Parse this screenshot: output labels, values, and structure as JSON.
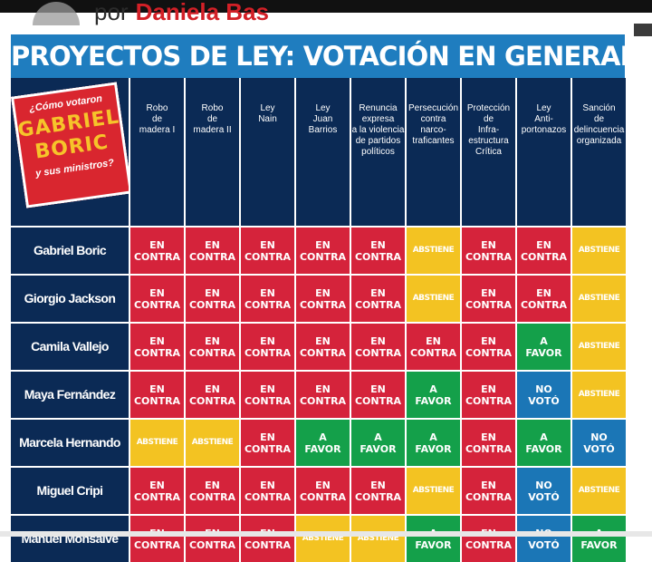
{
  "header": {
    "byline_prefix": "por",
    "byline_name": "Daniela Bas",
    "title": "PROYECTOS DE LEY: VOTACIÓN EN GENERAL"
  },
  "badge": {
    "question_top": "¿Cómo votaron",
    "name_line1": "GABRIEL",
    "name_line2": "BORIC",
    "question_bottom": "y sus ministros?"
  },
  "columns": [
    [
      "Robo",
      "de",
      "madera I"
    ],
    [
      "Robo",
      "de",
      "madera II"
    ],
    [
      "Ley",
      "Nain"
    ],
    [
      "Ley",
      "Juan",
      "Barrios"
    ],
    [
      "Renuncia",
      "expresa",
      "a la violencia",
      "de partidos",
      "políticos"
    ],
    [
      "Persecución",
      "contra",
      "narco-",
      "traficantes"
    ],
    [
      "Protección",
      "de",
      "Infra-",
      "estructura",
      "Crítica"
    ],
    [
      "Ley",
      "Anti-",
      "portonazos"
    ],
    [
      "Sanción",
      "de",
      "delincuencia",
      "organizada"
    ]
  ],
  "vote_labels": {
    "contra": [
      "EN",
      "CONTRA"
    ],
    "favor": [
      "A",
      "FAVOR"
    ],
    "abst": [
      "ABSTIENE"
    ],
    "nov": [
      "NO",
      "VOTÓ"
    ]
  },
  "colors": {
    "contra": "#d5233b",
    "favor": "#14a04a",
    "abst": "#f3c322",
    "nov": "#1b76b6",
    "title_bg": "#1f7dbf",
    "navy": "#0b2a55"
  },
  "rows": [
    {
      "name": "Gabriel Boric",
      "votes": [
        "contra",
        "contra",
        "contra",
        "contra",
        "contra",
        "abst",
        "contra",
        "contra",
        "abst"
      ]
    },
    {
      "name": "Giorgio Jackson",
      "votes": [
        "contra",
        "contra",
        "contra",
        "contra",
        "contra",
        "abst",
        "contra",
        "contra",
        "abst"
      ]
    },
    {
      "name": "Camila Vallejo",
      "votes": [
        "contra",
        "contra",
        "contra",
        "contra",
        "contra",
        "contra",
        "contra",
        "favor",
        "abst"
      ]
    },
    {
      "name": "Maya Fernández",
      "votes": [
        "contra",
        "contra",
        "contra",
        "contra",
        "contra",
        "favor",
        "contra",
        "nov",
        "abst"
      ]
    },
    {
      "name": "Marcela Hernando",
      "votes": [
        "abst",
        "abst",
        "contra",
        "favor",
        "favor",
        "favor",
        "contra",
        "favor",
        "nov"
      ]
    },
    {
      "name": "Miguel Cripi",
      "votes": [
        "contra",
        "contra",
        "contra",
        "contra",
        "contra",
        "abst",
        "contra",
        "nov",
        "abst"
      ]
    },
    {
      "name": "Manuel Monsalve",
      "votes": [
        "contra",
        "contra",
        "contra",
        "abst",
        "abst",
        "favor",
        "contra",
        "nov",
        "favor"
      ]
    }
  ]
}
